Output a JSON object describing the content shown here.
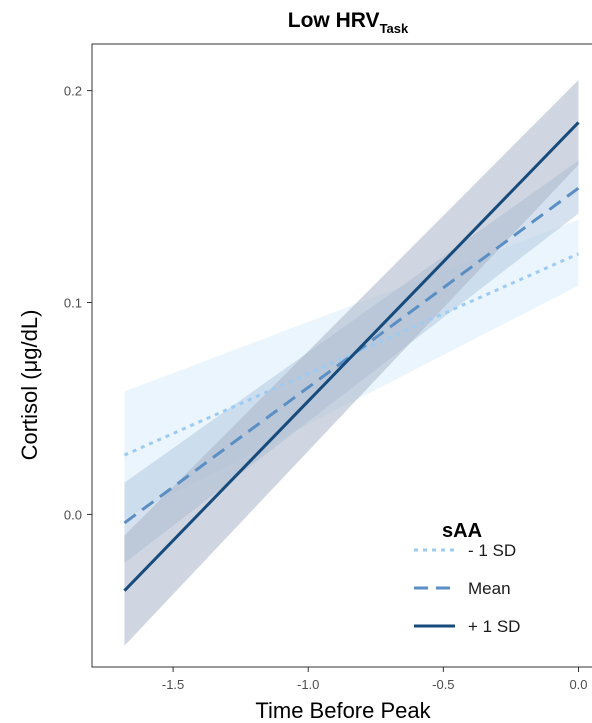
{
  "chart_data": {
    "type": "line",
    "title": "Low HRV",
    "title_subscript": "Task",
    "xlabel": "Time Before Peak",
    "ylabel": "Cortisol (μg/dL)",
    "xlim": [
      -1.8,
      0.05
    ],
    "ylim": [
      -0.072,
      0.222
    ],
    "x_ticks": [
      -1.5,
      -1.0,
      -0.5,
      0.0
    ],
    "x_tick_labels": [
      "-1.5",
      "-1.0",
      "-0.5",
      "0.0"
    ],
    "y_ticks": [
      0.0,
      0.1,
      0.2
    ],
    "y_tick_labels": [
      "0.0",
      "0.1",
      "0.2"
    ],
    "grid": false,
    "legend": {
      "title": "sAA",
      "position": "bottom-right"
    },
    "series": [
      {
        "name": "- 1 SD",
        "color": "#9ecbf2",
        "band_color": "#d9ecfc",
        "dash": "dotted",
        "x": [
          -1.68,
          0.0
        ],
        "y": [
          0.028,
          0.123
        ],
        "ci_lower": [
          -0.002,
          0.108
        ],
        "ci_upper": [
          0.058,
          0.139
        ]
      },
      {
        "name": "Mean",
        "color": "#5b8fc4",
        "band_color": "#b3c9e0",
        "dash": "dashed",
        "x": [
          -1.68,
          0.0
        ],
        "y": [
          -0.004,
          0.154
        ],
        "ci_lower": [
          -0.023,
          0.142
        ],
        "ci_upper": [
          0.015,
          0.167
        ]
      },
      {
        "name": "+ 1 SD",
        "color": "#174b7c",
        "band_color": "#aab5c8",
        "dash": "solid",
        "x": [
          -1.68,
          0.0
        ],
        "y": [
          -0.036,
          0.185
        ],
        "ci_lower": [
          -0.062,
          0.165
        ],
        "ci_upper": [
          -0.01,
          0.205
        ]
      }
    ]
  }
}
